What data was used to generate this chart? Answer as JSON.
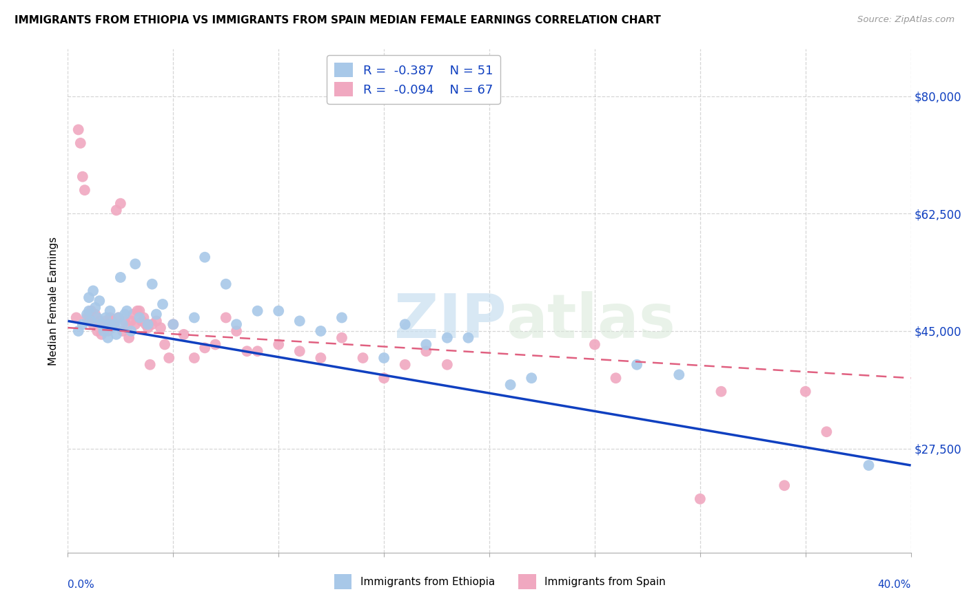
{
  "title": "IMMIGRANTS FROM ETHIOPIA VS IMMIGRANTS FROM SPAIN MEDIAN FEMALE EARNINGS CORRELATION CHART",
  "source": "Source: ZipAtlas.com",
  "ylabel": "Median Female Earnings",
  "xlim": [
    0.0,
    0.4
  ],
  "ylim": [
    12000,
    87000
  ],
  "yticks": [
    27500,
    45000,
    62500,
    80000
  ],
  "ytick_labels": [
    "$27,500",
    "$45,000",
    "$62,500",
    "$80,000"
  ],
  "xticks": [
    0.0,
    0.05,
    0.1,
    0.15,
    0.2,
    0.25,
    0.3,
    0.35,
    0.4
  ],
  "color_ethiopia": "#a8c8e8",
  "color_spain": "#f0a8c0",
  "line_color_ethiopia": "#1040c0",
  "line_color_spain": "#e06080",
  "watermark_zip": "ZIP",
  "watermark_atlas": "atlas",
  "eth_line_x": [
    0.0,
    0.4
  ],
  "eth_line_y": [
    46500,
    25000
  ],
  "sp_line_x": [
    0.0,
    0.4
  ],
  "sp_line_y": [
    45500,
    38000
  ],
  "ethiopia_scatter_x": [
    0.005,
    0.007,
    0.009,
    0.01,
    0.01,
    0.011,
    0.012,
    0.013,
    0.014,
    0.015,
    0.016,
    0.017,
    0.018,
    0.019,
    0.02,
    0.02,
    0.021,
    0.022,
    0.023,
    0.024,
    0.025,
    0.026,
    0.027,
    0.028,
    0.03,
    0.032,
    0.034,
    0.038,
    0.04,
    0.042,
    0.045,
    0.05,
    0.06,
    0.065,
    0.075,
    0.08,
    0.09,
    0.1,
    0.11,
    0.12,
    0.13,
    0.15,
    0.16,
    0.17,
    0.18,
    0.19,
    0.21,
    0.22,
    0.27,
    0.29,
    0.38
  ],
  "ethiopia_scatter_y": [
    45000,
    46000,
    47500,
    50000,
    48000,
    46500,
    51000,
    48500,
    47000,
    49500,
    46000,
    45000,
    47000,
    44000,
    46000,
    48000,
    45500,
    46000,
    44500,
    47000,
    53000,
    46000,
    47500,
    48000,
    45000,
    55000,
    47000,
    46000,
    52000,
    47500,
    49000,
    46000,
    47000,
    56000,
    52000,
    46000,
    48000,
    48000,
    46500,
    45000,
    47000,
    41000,
    46000,
    43000,
    44000,
    44000,
    37000,
    38000,
    40000,
    38500,
    25000
  ],
  "spain_scatter_x": [
    0.004,
    0.005,
    0.006,
    0.007,
    0.008,
    0.009,
    0.01,
    0.01,
    0.011,
    0.012,
    0.013,
    0.014,
    0.015,
    0.016,
    0.017,
    0.018,
    0.019,
    0.02,
    0.021,
    0.022,
    0.023,
    0.024,
    0.025,
    0.026,
    0.027,
    0.028,
    0.029,
    0.03,
    0.031,
    0.032,
    0.033,
    0.034,
    0.035,
    0.036,
    0.037,
    0.038,
    0.039,
    0.04,
    0.042,
    0.044,
    0.046,
    0.048,
    0.05,
    0.055,
    0.06,
    0.065,
    0.07,
    0.075,
    0.08,
    0.085,
    0.09,
    0.1,
    0.11,
    0.12,
    0.13,
    0.14,
    0.15,
    0.16,
    0.17,
    0.18,
    0.25,
    0.26,
    0.3,
    0.31,
    0.34,
    0.35,
    0.36
  ],
  "spain_scatter_y": [
    47000,
    75000,
    73000,
    68000,
    66000,
    47000,
    47500,
    46500,
    48000,
    46000,
    47500,
    45000,
    46500,
    44500,
    46000,
    46500,
    45000,
    47000,
    46500,
    46000,
    63000,
    47000,
    64000,
    45000,
    46500,
    45500,
    44000,
    46500,
    47500,
    46000,
    48000,
    48000,
    46500,
    47000,
    46000,
    45500,
    40000,
    46000,
    46500,
    45500,
    43000,
    41000,
    46000,
    44500,
    41000,
    42500,
    43000,
    47000,
    45000,
    42000,
    42000,
    43000,
    42000,
    41000,
    44000,
    41000,
    38000,
    40000,
    42000,
    40000,
    43000,
    38000,
    20000,
    36000,
    22000,
    36000,
    30000
  ]
}
